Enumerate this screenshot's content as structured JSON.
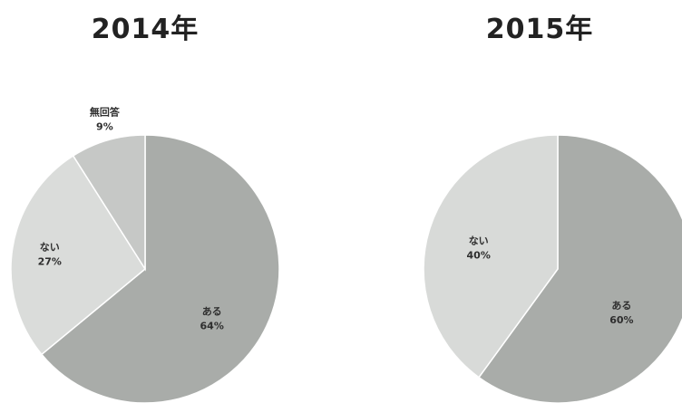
{
  "colors": {
    "background": "#ffffff",
    "slice_edge": "#ffffff",
    "text": "#2e2e2e"
  },
  "chart_data": [
    {
      "type": "pie",
      "title": "2014年",
      "slices": [
        {
          "label": "ある",
          "value": 64,
          "value_text": "64%",
          "color": "#a9aca9"
        },
        {
          "label": "ない",
          "value": 27,
          "value_text": "27%",
          "color": "#dadcda"
        },
        {
          "label": "無回答",
          "value": 9,
          "value_text": "9%",
          "color": "#c6c8c6"
        }
      ]
    },
    {
      "type": "pie",
      "title": "2015年",
      "slices": [
        {
          "label": "ある",
          "value": 60,
          "value_text": "60%",
          "color": "#a9aca9"
        },
        {
          "label": "ない",
          "value": 40,
          "value_text": "40%",
          "color": "#d8dad8"
        }
      ]
    }
  ]
}
